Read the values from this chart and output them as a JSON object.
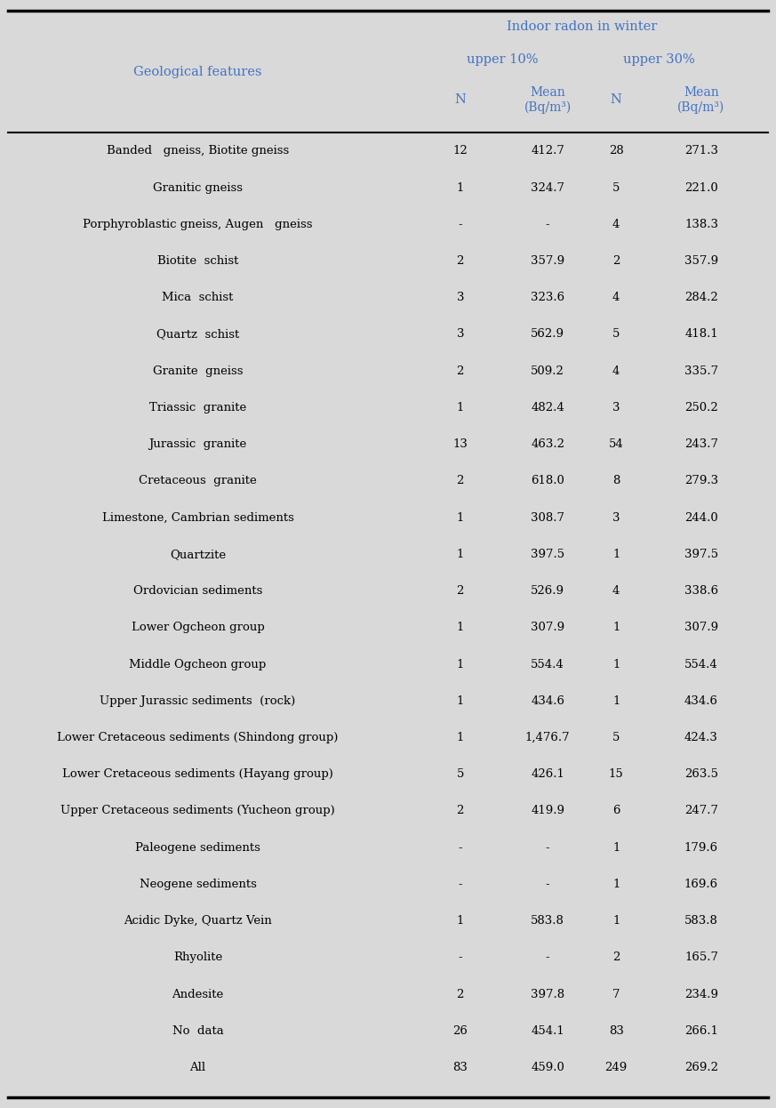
{
  "col_header_line1": "Indoor radon in winter",
  "col_header_upper10": "upper 10%",
  "col_header_upper30": "upper 30%",
  "left_col_header": "Geological features",
  "bg_color": "#d9d9d9",
  "header_text_color": "#4472c4",
  "body_text_color": "#000000",
  "rows": [
    [
      "Banded   gneiss, Biotite gneiss",
      "12",
      "412.7",
      "28",
      "271.3"
    ],
    [
      "Granitic gneiss",
      "1",
      "324.7",
      "5",
      "221.0"
    ],
    [
      "Porphyroblastic gneiss, Augen   gneiss",
      "-",
      "-",
      "4",
      "138.3"
    ],
    [
      "Biotite  schist",
      "2",
      "357.9",
      "2",
      "357.9"
    ],
    [
      "Mica  schist",
      "3",
      "323.6",
      "4",
      "284.2"
    ],
    [
      "Quartz  schist",
      "3",
      "562.9",
      "5",
      "418.1"
    ],
    [
      "Granite  gneiss",
      "2",
      "509.2",
      "4",
      "335.7"
    ],
    [
      "Triassic  granite",
      "1",
      "482.4",
      "3",
      "250.2"
    ],
    [
      "Jurassic  granite",
      "13",
      "463.2",
      "54",
      "243.7"
    ],
    [
      "Cretaceous  granite",
      "2",
      "618.0",
      "8",
      "279.3"
    ],
    [
      "Limestone, Cambrian sediments",
      "1",
      "308.7",
      "3",
      "244.0"
    ],
    [
      "Quartzite",
      "1",
      "397.5",
      "1",
      "397.5"
    ],
    [
      "Ordovician sediments",
      "2",
      "526.9",
      "4",
      "338.6"
    ],
    [
      "Lower Ogcheon group",
      "1",
      "307.9",
      "1",
      "307.9"
    ],
    [
      "Middle Ogcheon group",
      "1",
      "554.4",
      "1",
      "554.4"
    ],
    [
      "Upper Jurassic sediments  (rock)",
      "1",
      "434.6",
      "1",
      "434.6"
    ],
    [
      "Lower Cretaceous sediments (Shindong group)",
      "1",
      "1,476.7",
      "5",
      "424.3"
    ],
    [
      "Lower Cretaceous sediments (Hayang group)",
      "5",
      "426.1",
      "15",
      "263.5"
    ],
    [
      "Upper Cretaceous sediments (Yucheon group)",
      "2",
      "419.9",
      "6",
      "247.7"
    ],
    [
      "Paleogene sediments",
      "-",
      "-",
      "1",
      "179.6"
    ],
    [
      "Neogene sediments",
      "-",
      "-",
      "1",
      "169.6"
    ],
    [
      "Acidic Dyke, Quartz Vein",
      "1",
      "583.8",
      "1",
      "583.8"
    ],
    [
      "Rhyolite",
      "-",
      "-",
      "2",
      "165.7"
    ],
    [
      "Andesite",
      "2",
      "397.8",
      "7",
      "234.9"
    ],
    [
      "No  data",
      "26",
      "454.1",
      "83",
      "266.1"
    ],
    [
      "All",
      "83",
      "459.0",
      "249",
      "269.2"
    ]
  ],
  "figsize": [
    8.73,
    12.46
  ],
  "dpi": 100
}
